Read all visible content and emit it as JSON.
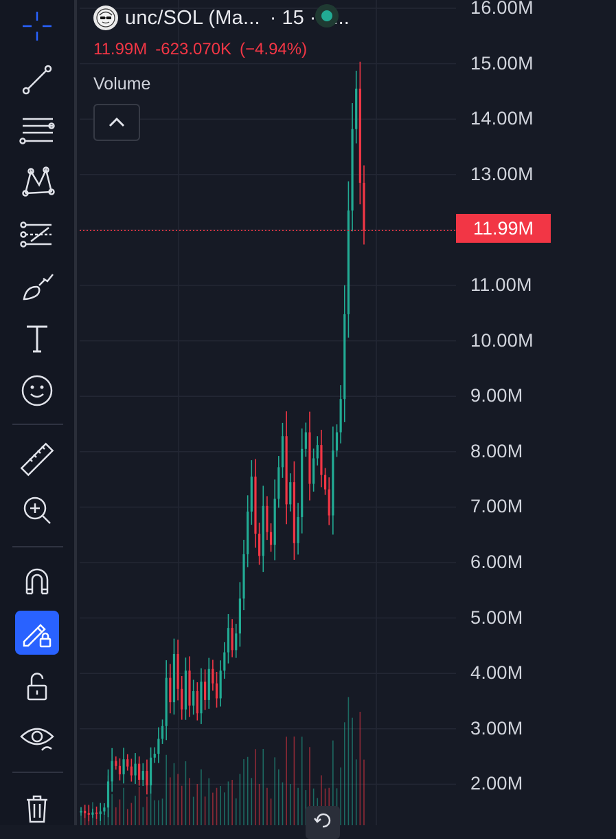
{
  "header": {
    "symbol": "unc/SOL (Ma...",
    "interval": "· 15 · d...",
    "last": "11.99M",
    "change": "-623.070K",
    "change_pct": "(−4.94%)",
    "status": "market-open"
  },
  "indicators": {
    "volume_label": "Volume"
  },
  "price_axis": {
    "labels": [
      "16.00M",
      "15.00M",
      "14.00M",
      "13.00M",
      "12.00M",
      "11.00M",
      "10.00M",
      "9.00M",
      "8.00M",
      "7.00M",
      "6.00M",
      "5.00M",
      "4.00M",
      "3.00M",
      "2.00M"
    ],
    "current_price_label": "11.99M"
  },
  "colors": {
    "up": "#22ab94",
    "down": "#f23645",
    "background": "#161a25",
    "active_tool": "#2962ff"
  },
  "toolbar": {
    "tools": [
      "crosshair-icon",
      "trend-line-icon",
      "fib-retracement-icon",
      "pattern-icon",
      "prediction-icon",
      "brush-icon",
      "text-icon",
      "emoji-icon",
      "ruler-icon",
      "zoom-in-icon",
      "magnet-icon",
      "lock-drawing-icon",
      "unlock-icon",
      "eye-icon",
      "trash-icon"
    ],
    "active_tool": "lock-drawing-icon"
  },
  "chart_data": {
    "type": "candlestick",
    "ylim": [
      2000000,
      16000000
    ],
    "last_price": 11990000,
    "closes_m": [
      1.52,
      1.48,
      1.45,
      1.49,
      1.46,
      1.51,
      1.58,
      2.05,
      2.42,
      2.33,
      2.18,
      2.45,
      2.32,
      2.16,
      2.37,
      2.08,
      2.24,
      1.98,
      2.48,
      2.55,
      2.82,
      3.05,
      3.92,
      3.48,
      4.35,
      3.72,
      3.35,
      4.05,
      3.42,
      3.68,
      3.28,
      3.85,
      3.52,
      4.08,
      3.82,
      3.55,
      4.05,
      4.38,
      4.82,
      4.42,
      4.72,
      5.35,
      6.15,
      6.92,
      7.55,
      6.52,
      6.12,
      7.02,
      6.55,
      6.32,
      7.15,
      7.72,
      8.28,
      7.05,
      7.45,
      6.35,
      6.82,
      8.05,
      8.35,
      7.42,
      7.88,
      8.12,
      7.58,
      7.32,
      6.85,
      8.02,
      8.35,
      8.95,
      10.48,
      12.35,
      13.82,
      14.55,
      12.85,
      11.99
    ]
  }
}
